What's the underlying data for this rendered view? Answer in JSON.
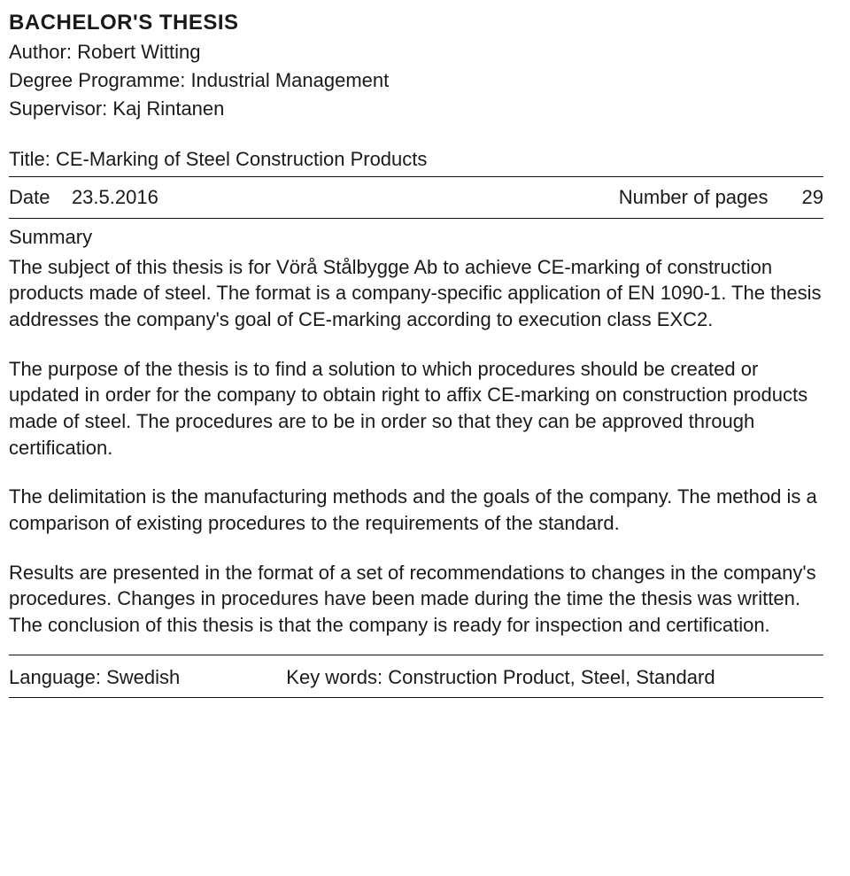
{
  "heading": "BACHELOR'S THESIS",
  "author_label": "Author:",
  "author_value": "Robert Witting",
  "degree_label": "Degree Programme:",
  "degree_value": "Industrial Management",
  "supervisor_label": "Supervisor:",
  "supervisor_value": "Kaj Rintanen",
  "title_label": "Title:",
  "title_value": "CE-Marking of Steel Construction Products",
  "date_label": "Date",
  "date_value": "23.5.2016",
  "pages_label": "Number of pages",
  "pages_value": "29",
  "summary_label": "Summary",
  "p1": "The subject of this thesis is for Vörå Stålbygge Ab to achieve CE-marking of construction products made of steel. The format is a company-specific application of EN 1090-1. The thesis addresses the company's goal of CE-marking according to execution class EXC2.",
  "p2": "The purpose of the thesis is to find a solution to which procedures should be created or updated in order for the company to obtain right to affix CE-marking on construction products made of steel. The procedures are to be in order so that they can be approved through certification.",
  "p3": "The delimitation is the manufacturing methods and the goals of the company. The method is a comparison of existing procedures to the requirements of the standard.",
  "p4": "Results are presented in the format of a set of recommendations to changes in the company's procedures. Changes in procedures have been made during the time the thesis was written. The conclusion of this thesis is that the company is ready for inspection and certification.",
  "language_label": "Language:",
  "language_value": "Swedish",
  "keywords_label": "Key words:",
  "keywords_value": "Construction Product, Steel, Standard"
}
